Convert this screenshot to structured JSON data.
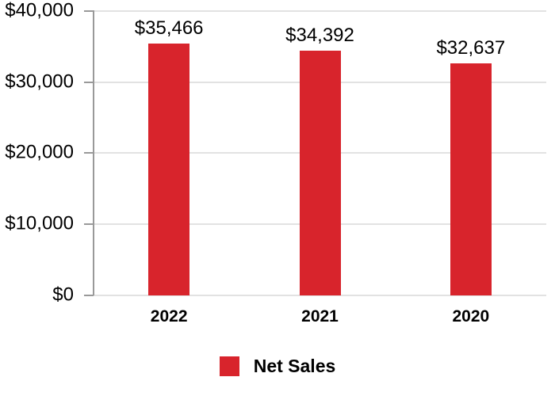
{
  "chart_data": {
    "type": "bar",
    "title": "",
    "xlabel": "",
    "ylabel": "",
    "categories": [
      "2022",
      "2021",
      "2020"
    ],
    "series": [
      {
        "name": "Net Sales",
        "values": [
          35466,
          34392,
          32637
        ],
        "value_labels": [
          "$35,466",
          "$34,392",
          "$32,637"
        ],
        "color": "#d8242c"
      }
    ],
    "ylim": [
      0,
      40000
    ],
    "y_ticks": [
      {
        "value": 0,
        "label": "$0"
      },
      {
        "value": 10000,
        "label": "$10,000"
      },
      {
        "value": 20000,
        "label": "$20,000"
      },
      {
        "value": 30000,
        "label": "$30,000"
      },
      {
        "value": 40000,
        "label": "$40,000"
      }
    ],
    "grid": true,
    "legend": {
      "position": "bottom",
      "entries": [
        {
          "label": "Net Sales",
          "color": "#d8242c"
        }
      ]
    }
  },
  "colors": {
    "bar": "#d8242c",
    "axis": "#999999",
    "gridline": "#e2e2e2",
    "text": "#000000",
    "background": "#ffffff"
  }
}
